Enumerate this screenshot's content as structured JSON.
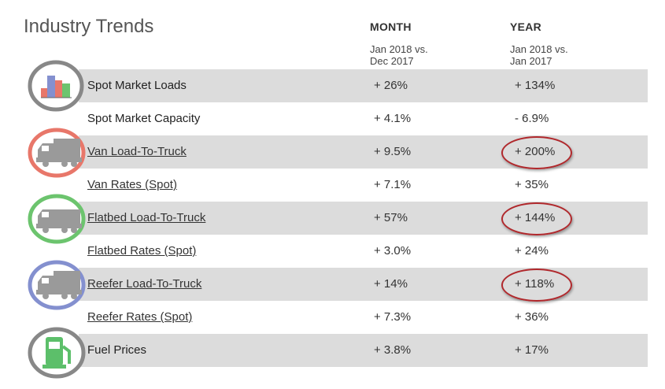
{
  "title": "Industry Trends",
  "columns": {
    "month": {
      "head": "MONTH",
      "sub1": "Jan 2018 vs.",
      "sub2": "Dec 2017"
    },
    "year": {
      "head": "YEAR",
      "sub1": "Jan 2018 vs.",
      "sub2": "Jan 2017"
    }
  },
  "rows": [
    {
      "label": "Spot Market Loads",
      "month": "+ 26%",
      "year": "+ 134%"
    },
    {
      "label": "Spot Market Capacity",
      "month": "+ 4.1%",
      "year": "- 6.9%"
    },
    {
      "label": "Van Load-To-Truck ",
      "month": "+ 9.5%",
      "year": "+ 200%"
    },
    {
      "label": "Van Rates (Spot)",
      "month": "+ 7.1%",
      "year": "+ 35%"
    },
    {
      "label": "Flatbed Load-To-Truck ",
      "month": "+ 57%",
      "year": "+ 144%"
    },
    {
      "label": "Flatbed Rates (Spot)",
      "month": "+ 3.0%",
      "year": "+ 24%"
    },
    {
      "label": "Reefer Load-To-Truck ",
      "month": "+ 14%",
      "year": "+ 118%"
    },
    {
      "label": "Reefer Rates (Spot)",
      "month": "+ 7.3%",
      "year": "+ 36%"
    },
    {
      "label": "Fuel Prices",
      "month": "+ 3.8%",
      "year": "+ 17%"
    }
  ],
  "icons": {
    "chart": "bar-chart-icon",
    "van": "truck-icon",
    "flatbed": "truck-icon",
    "reefer": "truck-icon",
    "fuel": "fuel-pump-icon"
  },
  "colors": {
    "row_shade": "#dcdcdc",
    "chart_ring": "#888888",
    "van_ring": "#e8776a",
    "flatbed_ring": "#6cc46e",
    "reefer_ring": "#8490cf",
    "fuel_ring": "#888888",
    "fuel_green": "#5cbf6a",
    "highlight_circle": "#b0282c",
    "truck_gray": "#9a9a9a"
  }
}
